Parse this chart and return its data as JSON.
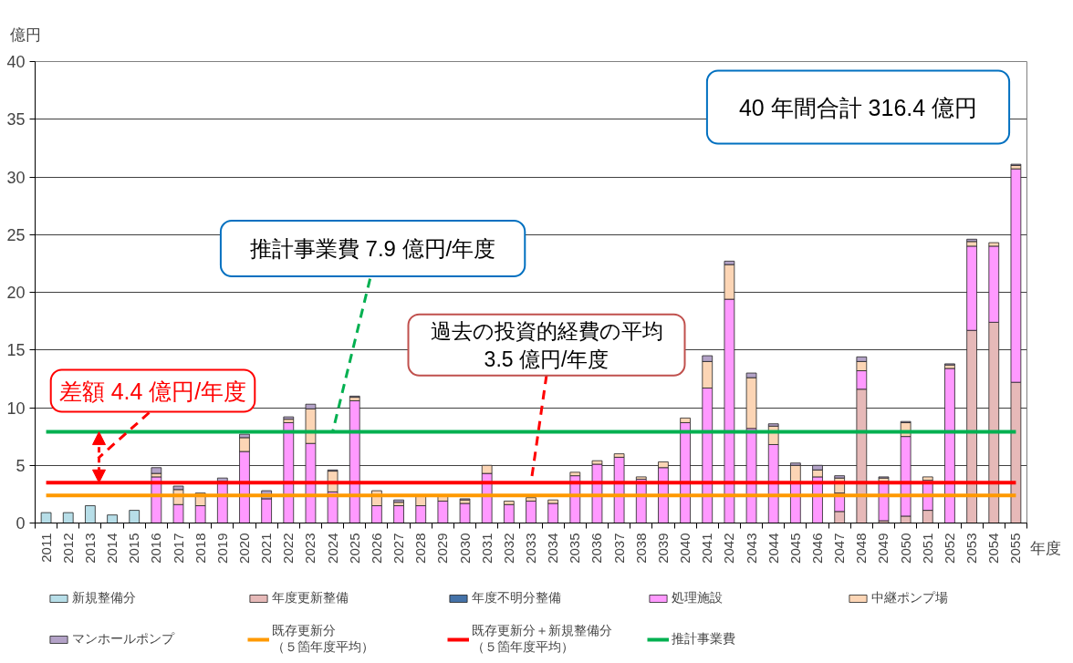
{
  "chart_data": {
    "type": "bar",
    "stacked": true,
    "ylabel": "億円",
    "xlabel": "年度",
    "categories": [
      "2011",
      "2012",
      "2013",
      "2014",
      "2015",
      "2016",
      "2017",
      "2018",
      "2019",
      "2020",
      "2021",
      "2022",
      "2023",
      "2024",
      "2025",
      "2026",
      "2027",
      "2028",
      "2029",
      "2030",
      "2031",
      "2032",
      "2033",
      "2034",
      "2035",
      "2036",
      "2037",
      "2038",
      "2039",
      "2040",
      "2041",
      "2042",
      "2043",
      "2044",
      "2045",
      "2046",
      "2047",
      "2048",
      "2049",
      "2050",
      "2051",
      "2052",
      "2053",
      "2054",
      "2055"
    ],
    "series": [
      {
        "name": "新規整備分",
        "color": "#b7dee8",
        "values": [
          0.9,
          0.9,
          1.5,
          0.7,
          1.1,
          null,
          null,
          null,
          null,
          null,
          null,
          null,
          null,
          null,
          null,
          null,
          null,
          null,
          null,
          null,
          null,
          null,
          null,
          null,
          null,
          null,
          null,
          null,
          null,
          null,
          null,
          null,
          null,
          null,
          null,
          null,
          null,
          null,
          null,
          null,
          null,
          null,
          null,
          null,
          null
        ]
      },
      {
        "name": "年度更新整備",
        "color": "#e6b9b8",
        "values": [
          null,
          null,
          null,
          null,
          null,
          null,
          null,
          null,
          null,
          null,
          null,
          null,
          null,
          null,
          null,
          null,
          null,
          null,
          null,
          null,
          null,
          null,
          null,
          null,
          null,
          null,
          null,
          null,
          null,
          null,
          null,
          null,
          null,
          null,
          null,
          null,
          1.0,
          11.6,
          0.2,
          0.6,
          1.1,
          null,
          16.7,
          17.4,
          12.2
        ]
      },
      {
        "name": "年度不明分整備",
        "color": "#4472a8",
        "values": [
          null,
          null,
          null,
          null,
          null,
          null,
          null,
          null,
          null,
          null,
          null,
          null,
          null,
          null,
          null,
          null,
          null,
          null,
          null,
          null,
          null,
          null,
          null,
          null,
          null,
          null,
          null,
          null,
          null,
          null,
          null,
          null,
          null,
          null,
          null,
          null,
          null,
          null,
          null,
          null,
          null,
          null,
          null,
          null,
          null
        ]
      },
      {
        "name": "処理施設",
        "color": "#ff99ff",
        "values": [
          null,
          null,
          null,
          null,
          null,
          4.0,
          1.6,
          1.5,
          3.6,
          6.2,
          2.1,
          8.7,
          6.9,
          2.7,
          10.6,
          1.5,
          1.5,
          1.5,
          1.9,
          1.7,
          4.3,
          1.6,
          1.9,
          1.7,
          4.1,
          5.1,
          5.7,
          3.8,
          4.8,
          8.7,
          11.7,
          19.4,
          8.2,
          6.8,
          3.5,
          4.0,
          1.6,
          1.6,
          3.4,
          6.9,
          2.6,
          13.4,
          7.3,
          6.6,
          18.5
        ]
      },
      {
        "name": "中継ポンプ場",
        "color": "#fcd5b5",
        "values": [
          null,
          null,
          null,
          null,
          null,
          0.3,
          1.3,
          1.1,
          null,
          1.2,
          null,
          0.3,
          3.0,
          1.8,
          0.3,
          1.3,
          0.3,
          0.9,
          0.4,
          0.3,
          0.7,
          0.3,
          0.3,
          0.3,
          0.3,
          0.3,
          0.3,
          0.2,
          0.5,
          0.4,
          2.3,
          3.0,
          4.4,
          1.6,
          1.5,
          0.6,
          1.3,
          0.8,
          0.3,
          1.2,
          0.3,
          0.3,
          0.4,
          0.3,
          0.3
        ]
      },
      {
        "name": "マンホールポンプ",
        "color": "#b3a2c7",
        "values": [
          null,
          null,
          null,
          null,
          null,
          0.5,
          0.3,
          null,
          0.3,
          0.3,
          0.7,
          0.2,
          0.4,
          0.1,
          0.1,
          null,
          0.2,
          null,
          null,
          0.1,
          null,
          null,
          null,
          null,
          null,
          null,
          null,
          null,
          null,
          null,
          0.5,
          0.3,
          0.4,
          0.2,
          0.2,
          0.4,
          0.2,
          0.4,
          0.1,
          0.1,
          null,
          0.1,
          0.2,
          null,
          0.1
        ]
      }
    ],
    "ylim": [
      0,
      40
    ],
    "yticks": [
      0,
      5,
      10,
      15,
      20,
      25,
      30,
      35,
      40
    ],
    "grid": "y",
    "legend": "bottom",
    "ref_lines": [
      {
        "axis": "y",
        "value": 2.4,
        "label": "既存更新分（５箇年度平均）",
        "color": "#ff9900"
      },
      {
        "axis": "y",
        "value": 3.5,
        "label": "既存更新分＋新規整備分（５箇年度平均）",
        "color": "#ff0000"
      },
      {
        "axis": "y",
        "value": 7.9,
        "label": "推計事業費",
        "color": "#00b050"
      }
    ],
    "annotations": [
      "40 年間合計 316.4 億円",
      {
        "text": "推計事業費 7.9 億円/年度",
        "x": "2024",
        "y": 7.9
      },
      {
        "text": "過去の投資的経費の平均\n3.5 億円/年度",
        "x": "2033",
        "y": 3.5
      },
      "差額 4.4 億円/年度"
    ]
  }
}
